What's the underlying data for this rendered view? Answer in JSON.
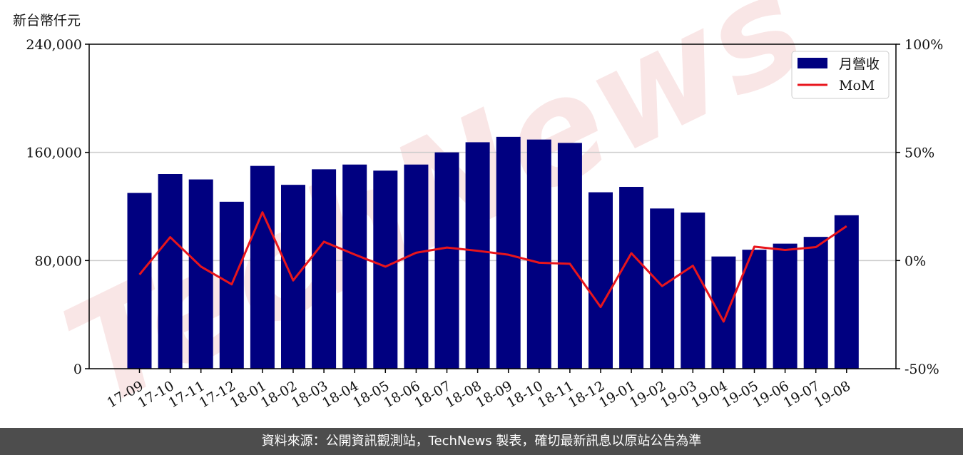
{
  "unit_label": "新台幣仟元",
  "footer_text": "資料來源：公開資訊觀測站，TechNews 製表，確切最新訊息以原站公告為準",
  "watermark_text": "TechNews",
  "colors": {
    "bar": "#000080",
    "line": "#e8151c",
    "grid": "#cccccc",
    "footer_bg": "#4d4d4d",
    "watermark": "#f3c9c9"
  },
  "chart_data": {
    "type": "bar",
    "categories": [
      "17-09",
      "17-10",
      "17-11",
      "17-12",
      "18-01",
      "18-02",
      "18-03",
      "18-04",
      "18-05",
      "18-06",
      "18-07",
      "18-08",
      "18-09",
      "18-10",
      "18-11",
      "18-12",
      "19-01",
      "19-02",
      "19-03",
      "19-04",
      "19-05",
      "19-06",
      "19-07",
      "19-08"
    ],
    "series": [
      {
        "name": "月營收",
        "type": "bar",
        "axis": "left",
        "values": [
          130000,
          144000,
          140000,
          123500,
          150000,
          136000,
          147500,
          151000,
          146500,
          151000,
          160000,
          167500,
          171500,
          169500,
          167000,
          130500,
          134500,
          118500,
          115500,
          83000,
          88000,
          92500,
          97500,
          113500
        ]
      },
      {
        "name": "MoM",
        "type": "line",
        "axis": "right",
        "values": [
          -6.5,
          10.8,
          -2.8,
          -11.0,
          22.3,
          -9.2,
          8.7,
          2.8,
          -2.8,
          3.6,
          6.0,
          4.5,
          2.7,
          -1.0,
          -1.5,
          -21.5,
          3.4,
          -11.8,
          -2.4,
          -28.2,
          6.4,
          4.9,
          6.2,
          15.9
        ]
      }
    ],
    "y_left": {
      "ylim": [
        0,
        240000
      ],
      "ticks": [
        "0",
        "80,000",
        "160,000",
        "240,000"
      ],
      "tick_values": [
        0,
        80000,
        160000,
        240000
      ]
    },
    "y_right": {
      "ylim": [
        -50,
        100
      ],
      "ticks": [
        "-50%",
        "0%",
        "50%",
        "100%"
      ],
      "tick_values": [
        -50,
        0,
        50,
        100
      ]
    },
    "grid": "horizontal",
    "legend_placement": "top-right"
  }
}
